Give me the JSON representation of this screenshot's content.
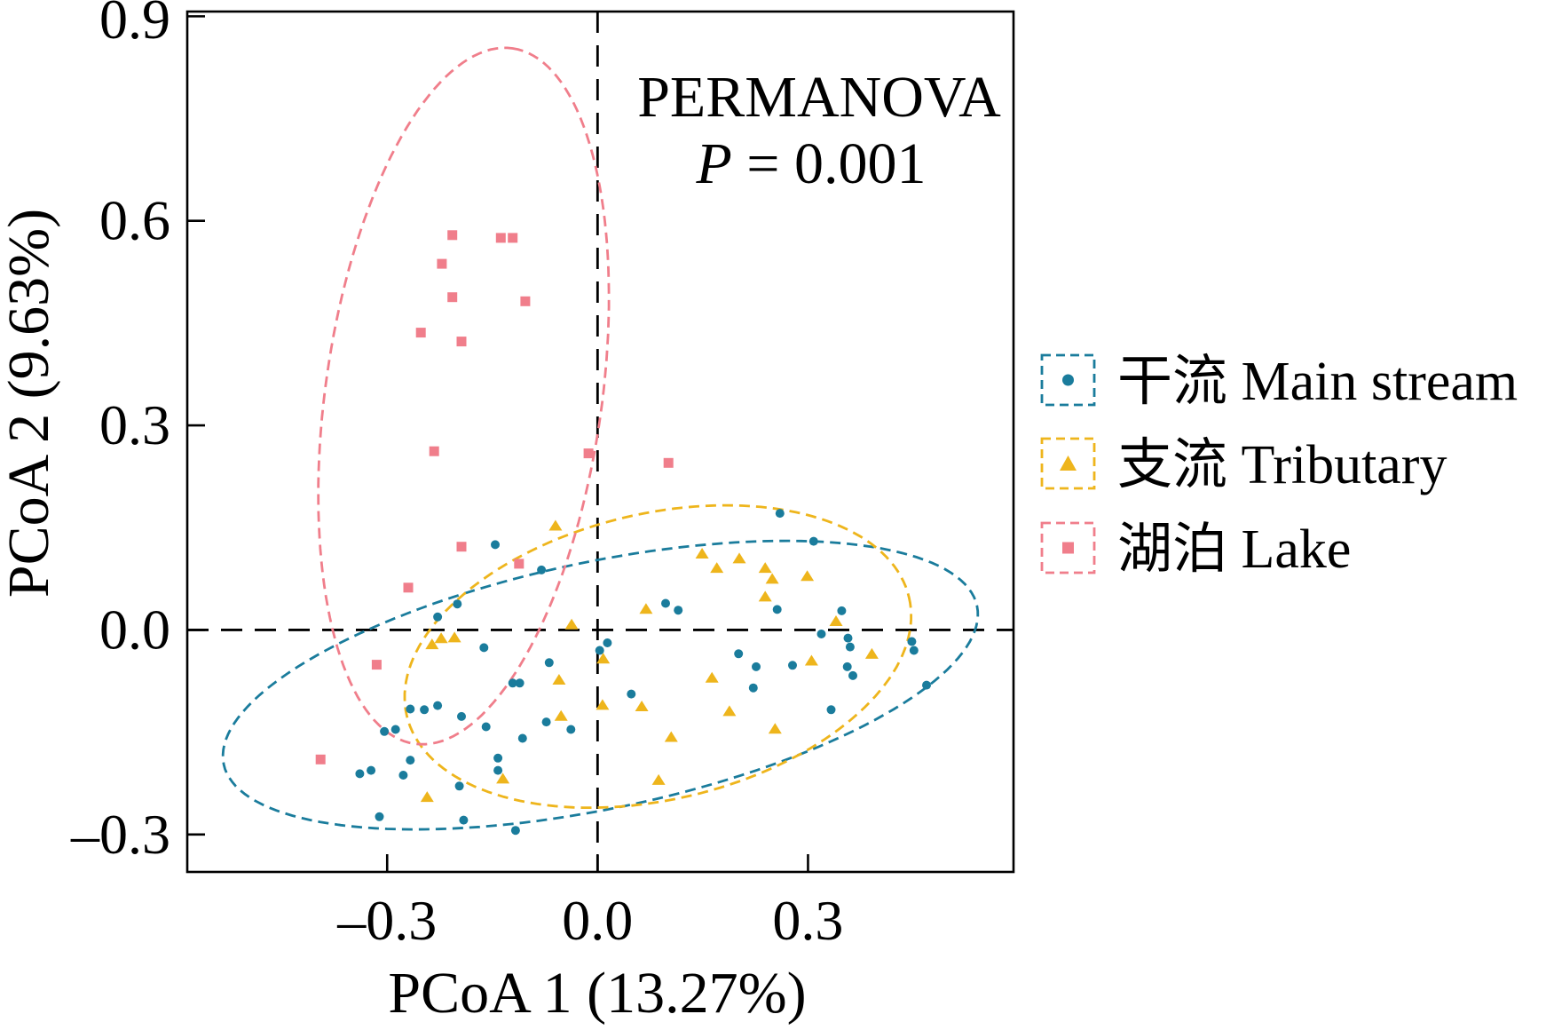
{
  "chart_data": {
    "type": "scatter",
    "xlabel": "PCoA 1 (13.27%)",
    "ylabel": "PCoA 2 (9.63%)",
    "xlim": [
      -0.585,
      0.593
    ],
    "ylim": [
      -0.355,
      0.907
    ],
    "grid": false,
    "legend_position": "right",
    "xticks": [
      {
        "value": -0.3,
        "label": "–0.3"
      },
      {
        "value": 0.0,
        "label": "0.0"
      },
      {
        "value": 0.3,
        "label": "0.3"
      }
    ],
    "yticks": [
      {
        "value": 0.9,
        "label": "0.9"
      },
      {
        "value": 0.6,
        "label": "0.6"
      },
      {
        "value": 0.3,
        "label": "0.3"
      },
      {
        "value": 0.0,
        "label": "0.0"
      },
      {
        "value": -0.3,
        "label": "–0.3"
      }
    ],
    "reference_lines": [
      {
        "axis": "x",
        "value": 0
      },
      {
        "axis": "y",
        "value": 0
      }
    ],
    "annotation": {
      "title": "PERMANOVA",
      "stat_symbol": "P",
      "stat_value": " = 0.001"
    },
    "series": [
      {
        "name": "干流 Main stream",
        "marker": "circle",
        "color": "#1A7C9C",
        "points": [
          [
            0.26,
            0.171
          ],
          [
            -0.146,
            0.125
          ],
          [
            0.308,
            0.13
          ],
          [
            -0.08,
            0.088
          ],
          [
            0.097,
            0.039
          ],
          [
            0.115,
            0.029
          ],
          [
            0.256,
            0.03
          ],
          [
            0.348,
            0.028
          ],
          [
            -0.2,
            0.038
          ],
          [
            -0.228,
            0.019
          ],
          [
            0.319,
            -0.006
          ],
          [
            0.357,
            -0.012
          ],
          [
            0.36,
            -0.025
          ],
          [
            0.003,
            -0.03
          ],
          [
            0.014,
            -0.019
          ],
          [
            -0.162,
            -0.026
          ],
          [
            -0.069,
            -0.048
          ],
          [
            0.201,
            -0.035
          ],
          [
            0.226,
            -0.054
          ],
          [
            0.278,
            -0.052
          ],
          [
            0.356,
            -0.054
          ],
          [
            0.364,
            -0.067
          ],
          [
            0.448,
            -0.017
          ],
          [
            0.451,
            -0.03
          ],
          [
            0.222,
            -0.085
          ],
          [
            0.469,
            -0.081
          ],
          [
            -0.121,
            -0.078
          ],
          [
            -0.111,
            -0.078
          ],
          [
            0.048,
            -0.094
          ],
          [
            -0.267,
            -0.116
          ],
          [
            -0.247,
            -0.117
          ],
          [
            -0.228,
            -0.111
          ],
          [
            -0.194,
            -0.127
          ],
          [
            0.333,
            -0.117
          ],
          [
            -0.159,
            -0.142
          ],
          [
            -0.073,
            -0.135
          ],
          [
            -0.107,
            -0.159
          ],
          [
            -0.038,
            -0.146
          ],
          [
            -0.304,
            -0.149
          ],
          [
            -0.288,
            -0.146
          ],
          [
            -0.267,
            -0.191
          ],
          [
            -0.142,
            -0.188
          ],
          [
            -0.142,
            -0.206
          ],
          [
            -0.323,
            -0.206
          ],
          [
            -0.339,
            -0.211
          ],
          [
            -0.277,
            -0.213
          ],
          [
            -0.197,
            -0.229
          ],
          [
            -0.311,
            -0.274
          ],
          [
            -0.191,
            -0.279
          ],
          [
            -0.117,
            -0.294
          ]
        ],
        "ellipse": {
          "center": [
            0.004,
            -0.081
          ],
          "axis_1": [
            0.537,
            0.116
          ],
          "axis_2": [
            0.036,
            -0.177
          ]
        }
      },
      {
        "name": "支流 Tributary",
        "marker": "triangle",
        "color": "#EEB51C",
        "points": [
          [
            -0.06,
            0.152
          ],
          [
            0.149,
            0.111
          ],
          [
            0.17,
            0.09
          ],
          [
            0.202,
            0.104
          ],
          [
            0.239,
            0.09
          ],
          [
            0.249,
            0.074
          ],
          [
            0.299,
            0.078
          ],
          [
            0.239,
            0.048
          ],
          [
            0.069,
            0.03
          ],
          [
            -0.037,
            0.007
          ],
          [
            0.34,
            0.012
          ],
          [
            -0.204,
            -0.012
          ],
          [
            -0.223,
            -0.013
          ],
          [
            -0.236,
            -0.022
          ],
          [
            0.008,
            -0.043
          ],
          [
            0.305,
            -0.046
          ],
          [
            0.391,
            -0.036
          ],
          [
            -0.055,
            -0.074
          ],
          [
            0.163,
            -0.071
          ],
          [
            0.007,
            -0.111
          ],
          [
            0.063,
            -0.113
          ],
          [
            0.188,
            -0.12
          ],
          [
            -0.052,
            -0.127
          ],
          [
            0.105,
            -0.158
          ],
          [
            0.253,
            -0.146
          ],
          [
            -0.135,
            -0.219
          ],
          [
            0.087,
            -0.221
          ],
          [
            -0.243,
            -0.246
          ]
        ],
        "ellipse": {
          "center": [
            0.086,
            -0.039
          ],
          "axis_1": [
            0.358,
            0.087
          ],
          "axis_2": [
            0.047,
            -0.204
          ]
        }
      },
      {
        "name": "湖泊 Lake",
        "marker": "square",
        "color": "#F07E8B",
        "points": [
          [
            -0.207,
            0.579
          ],
          [
            -0.138,
            0.575
          ],
          [
            -0.121,
            0.575
          ],
          [
            -0.222,
            0.537
          ],
          [
            -0.207,
            0.488
          ],
          [
            -0.103,
            0.482
          ],
          [
            -0.252,
            0.436
          ],
          [
            -0.194,
            0.423
          ],
          [
            -0.233,
            0.262
          ],
          [
            -0.013,
            0.259
          ],
          [
            0.101,
            0.245
          ],
          [
            -0.194,
            0.122
          ],
          [
            -0.112,
            0.097
          ],
          [
            -0.27,
            0.062
          ],
          [
            -0.315,
            -0.051
          ],
          [
            -0.395,
            -0.19
          ]
        ],
        "ellipse": {
          "center": [
            -0.191,
            0.343
          ],
          "axis_1": [
            0.07,
            0.51
          ],
          "axis_2": [
            0.195,
            -0.029
          ]
        }
      }
    ]
  }
}
